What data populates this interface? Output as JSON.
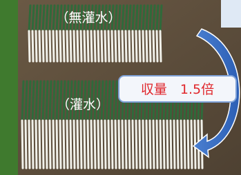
{
  "labels": {
    "top": "（無灌水）",
    "bottom": "（灌水）",
    "callout": "収量　1.5倍"
  }
}
